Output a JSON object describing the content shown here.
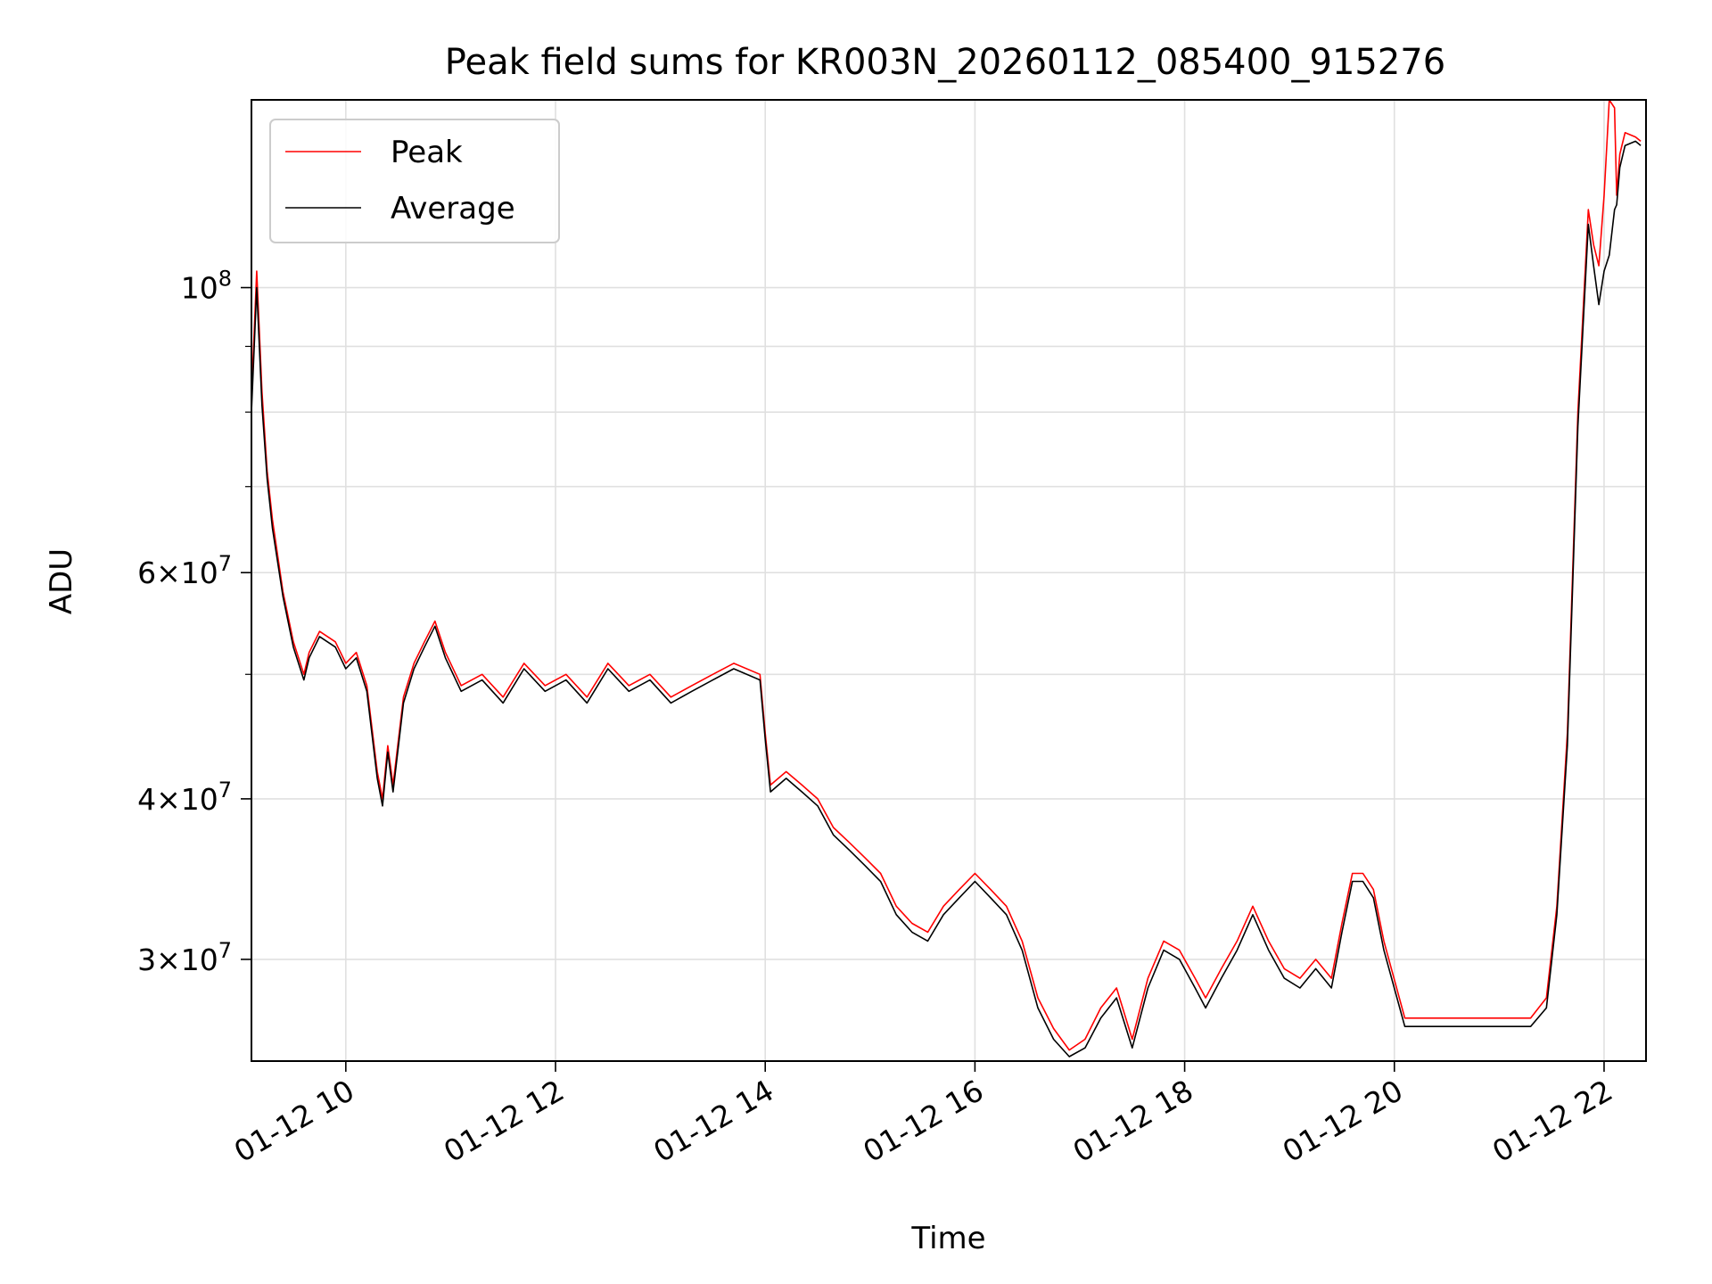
{
  "chart_data": {
    "type": "line",
    "title": "Peak field sums for KR003N_20260112_085400_915276",
    "xlabel": "Time",
    "ylabel": "ADU",
    "yscale": "log",
    "grid": true,
    "legend_position": "upper left",
    "x_unit": "hours on 2026-01-12",
    "xlim": [
      9.1,
      22.4
    ],
    "ylim": [
      25000000,
      140000000
    ],
    "x_ticks": [
      10,
      12,
      14,
      16,
      18,
      20,
      22
    ],
    "x_tick_labels": [
      "01-12 10",
      "01-12 12",
      "01-12 14",
      "01-12 16",
      "01-12 18",
      "01-12 20",
      "01-12 22"
    ],
    "y_ticks": [
      30000000,
      40000000,
      60000000,
      100000000
    ],
    "y_tick_labels": [
      {
        "mantissa": "3",
        "exponent": "7"
      },
      {
        "mantissa": "4",
        "exponent": "7"
      },
      {
        "mantissa": "6",
        "exponent": "7"
      },
      {
        "mantissa": "",
        "exponent": "8"
      }
    ],
    "y_minor_ticks": [
      50000000,
      70000000,
      80000000,
      90000000
    ],
    "series": [
      {
        "name": "Peak",
        "color": "#ff0000",
        "x": [
          9.1,
          9.15,
          9.2,
          9.25,
          9.3,
          9.4,
          9.5,
          9.6,
          9.65,
          9.75,
          9.9,
          10.0,
          10.1,
          10.2,
          10.3,
          10.35,
          10.4,
          10.45,
          10.55,
          10.65,
          10.75,
          10.85,
          10.95,
          11.1,
          11.3,
          11.5,
          11.7,
          11.9,
          12.1,
          12.3,
          12.5,
          12.7,
          12.9,
          13.1,
          13.3,
          13.5,
          13.7,
          13.95,
          14.0,
          14.05,
          14.2,
          14.35,
          14.5,
          14.65,
          14.8,
          14.95,
          15.1,
          15.25,
          15.4,
          15.55,
          15.7,
          15.85,
          16.0,
          16.15,
          16.3,
          16.45,
          16.6,
          16.75,
          16.9,
          17.05,
          17.2,
          17.35,
          17.5,
          17.65,
          17.8,
          17.95,
          18.1,
          18.2,
          18.35,
          18.5,
          18.65,
          18.8,
          18.95,
          19.1,
          19.25,
          19.4,
          19.5,
          19.6,
          19.7,
          19.8,
          19.9,
          20.1,
          20.4,
          20.7,
          21.0,
          21.3,
          21.45,
          21.55,
          21.65,
          21.75,
          21.85,
          21.9,
          21.95,
          22.0,
          22.05,
          22.1,
          22.12,
          22.15,
          22.2,
          22.3,
          22.35
        ],
        "values": [
          82000000,
          103000000,
          83000000,
          72000000,
          66000000,
          58000000,
          53000000,
          50000000,
          52000000,
          54000000,
          53000000,
          51000000,
          52000000,
          49000000,
          42000000,
          40000000,
          44000000,
          41000000,
          48000000,
          51000000,
          53000000,
          55000000,
          52000000,
          49000000,
          50000000,
          48000000,
          51000000,
          49000000,
          50000000,
          48000000,
          51000000,
          49000000,
          50000000,
          48000000,
          49000000,
          50000000,
          51000000,
          50000000,
          45000000,
          41000000,
          42000000,
          41000000,
          40000000,
          38000000,
          37000000,
          36000000,
          35000000,
          33000000,
          32000000,
          31500000,
          33000000,
          34000000,
          35000000,
          34000000,
          33000000,
          31000000,
          28000000,
          26500000,
          25500000,
          26000000,
          27500000,
          28500000,
          26000000,
          29000000,
          31000000,
          30500000,
          29000000,
          28000000,
          29500000,
          31000000,
          33000000,
          31000000,
          29500000,
          29000000,
          30000000,
          29000000,
          32000000,
          35000000,
          35000000,
          34000000,
          31000000,
          27000000,
          27000000,
          27000000,
          27000000,
          27000000,
          28000000,
          33000000,
          45000000,
          80000000,
          115000000,
          108000000,
          104000000,
          118000000,
          140000000,
          138000000,
          118000000,
          127000000,
          132000000,
          131000000,
          130000000
        ]
      },
      {
        "name": "Average",
        "color": "#000000",
        "x": [
          9.1,
          9.15,
          9.2,
          9.25,
          9.3,
          9.4,
          9.5,
          9.6,
          9.65,
          9.75,
          9.9,
          10.0,
          10.1,
          10.2,
          10.3,
          10.35,
          10.4,
          10.45,
          10.55,
          10.65,
          10.75,
          10.85,
          10.95,
          11.1,
          11.3,
          11.5,
          11.7,
          11.9,
          12.1,
          12.3,
          12.5,
          12.7,
          12.9,
          13.1,
          13.3,
          13.5,
          13.7,
          13.95,
          14.0,
          14.05,
          14.2,
          14.35,
          14.5,
          14.65,
          14.8,
          14.95,
          15.1,
          15.25,
          15.4,
          15.55,
          15.7,
          15.85,
          16.0,
          16.15,
          16.3,
          16.45,
          16.6,
          16.75,
          16.9,
          17.05,
          17.2,
          17.35,
          17.5,
          17.65,
          17.8,
          17.95,
          18.1,
          18.2,
          18.35,
          18.5,
          18.65,
          18.8,
          18.95,
          19.1,
          19.25,
          19.4,
          19.5,
          19.6,
          19.7,
          19.8,
          19.9,
          20.1,
          20.4,
          20.7,
          21.0,
          21.3,
          21.45,
          21.55,
          21.65,
          21.75,
          21.85,
          21.9,
          21.95,
          22.0,
          22.05,
          22.1,
          22.12,
          22.15,
          22.2,
          22.3,
          22.35
        ],
        "values": [
          80000000,
          100000000,
          81000000,
          71000000,
          65000000,
          57500000,
          52500000,
          49500000,
          51500000,
          53500000,
          52500000,
          50500000,
          51500000,
          48500000,
          41500000,
          39500000,
          43500000,
          40500000,
          47500000,
          50500000,
          52500000,
          54500000,
          51500000,
          48500000,
          49500000,
          47500000,
          50500000,
          48500000,
          49500000,
          47500000,
          50500000,
          48500000,
          49500000,
          47500000,
          48500000,
          49500000,
          50500000,
          49500000,
          44500000,
          40500000,
          41500000,
          40500000,
          39500000,
          37500000,
          36500000,
          35500000,
          34500000,
          32500000,
          31500000,
          31000000,
          32500000,
          33500000,
          34500000,
          33500000,
          32500000,
          30500000,
          27500000,
          26000000,
          25200000,
          25600000,
          27000000,
          28000000,
          25600000,
          28500000,
          30500000,
          30000000,
          28500000,
          27500000,
          29000000,
          30500000,
          32500000,
          30500000,
          29000000,
          28500000,
          29500000,
          28500000,
          31500000,
          34500000,
          34500000,
          33500000,
          30500000,
          26600000,
          26600000,
          26600000,
          26600000,
          26600000,
          27500000,
          32500000,
          44000000,
          78000000,
          112000000,
          104000000,
          97000000,
          103000000,
          106000000,
          115000000,
          116000000,
          124000000,
          129000000,
          130000000,
          129000000
        ]
      }
    ]
  }
}
